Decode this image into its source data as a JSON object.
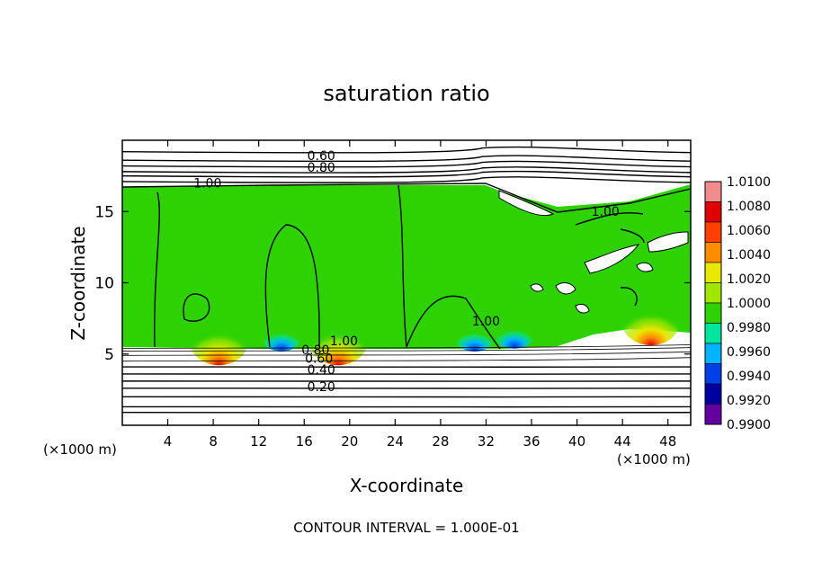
{
  "chart_data": {
    "type": "heatmap",
    "title": "saturation ratio",
    "xlabel": "X-coordinate",
    "ylabel": "Z-coordinate",
    "x_unit_left": "(×1000 m)",
    "x_unit_right": "(×1000 m)",
    "footer": "CONTOUR INTERVAL = 1.000E-01",
    "xlim": [
      0,
      50
    ],
    "ylim": [
      0,
      20
    ],
    "x_ticks": [
      "4",
      "8",
      "12",
      "16",
      "20",
      "24",
      "28",
      "32",
      "36",
      "40",
      "44",
      "48"
    ],
    "x_tick_values": [
      4,
      8,
      12,
      16,
      20,
      24,
      28,
      32,
      36,
      40,
      44,
      48
    ],
    "y_ticks": [
      "5",
      "10",
      "15"
    ],
    "y_tick_values": [
      5,
      10,
      15
    ],
    "colorbar": {
      "labels": [
        "1.0100",
        "1.0080",
        "1.0060",
        "1.0040",
        "1.0020",
        "1.0000",
        "0.9980",
        "0.9960",
        "0.9940",
        "0.9920",
        "0.9900"
      ],
      "values": [
        1.01,
        1.008,
        1.006,
        1.004,
        1.002,
        1.0,
        0.998,
        0.996,
        0.994,
        0.992,
        0.99
      ],
      "colors": [
        "#f08c8c",
        "#e00000",
        "#ff4000",
        "#ff8c00",
        "#e8e800",
        "#a0e600",
        "#2ed200",
        "#00e6a0",
        "#00b4ff",
        "#0040e6",
        "#0000a0",
        "#6400a0"
      ]
    },
    "contour_labels": [
      {
        "text": "0.60",
        "x": 17.5,
        "z": 18.6
      },
      {
        "text": "0.80",
        "x": 17.5,
        "z": 17.8
      },
      {
        "text": "1.00",
        "x": 7.5,
        "z": 16.7
      },
      {
        "text": "1.00",
        "x": 42.5,
        "z": 14.7
      },
      {
        "text": "1.00",
        "x": 32.0,
        "z": 7.0
      },
      {
        "text": "1.00",
        "x": 19.5,
        "z": 5.6
      },
      {
        "text": "0.80",
        "x": 17.0,
        "z": 5.0
      },
      {
        "text": "0.60",
        "x": 17.3,
        "z": 4.4
      },
      {
        "text": "0.40",
        "x": 17.5,
        "z": 3.6
      },
      {
        "text": "0.20",
        "x": 17.5,
        "z": 2.4
      }
    ],
    "hotspots": [
      {
        "x": 8.5,
        "z": 5.6,
        "value": 1.008
      },
      {
        "x": 19.0,
        "z": 5.6,
        "value": 1.008
      },
      {
        "x": 46.5,
        "z": 7.0,
        "value": 1.004
      }
    ],
    "low_spots": [
      {
        "x": 14.0,
        "z": 5.8,
        "value": 0.994
      },
      {
        "x": 31.0,
        "z": 5.8,
        "value": 0.994
      },
      {
        "x": 34.5,
        "z": 6.0,
        "value": 0.994
      }
    ],
    "supersaturated_layer": {
      "z_bottom": 5.5,
      "z_top": 16.7,
      "value": 1.0
    },
    "horizontal_contours_below": [
      0.9,
      1.3,
      2.0,
      2.6,
      3.1,
      3.6,
      4.1,
      4.5,
      4.9,
      5.2,
      5.4
    ],
    "horizontal_contours_above": [
      17.1,
      17.5,
      17.8,
      18.2,
      18.6,
      19.2
    ]
  }
}
